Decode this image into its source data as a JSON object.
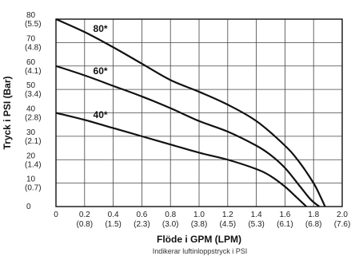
{
  "chart_data": {
    "type": "line",
    "xlabel": "Flöde i GPM (LPM)",
    "ylabel": "Tryck i PSI (Bar)",
    "note": "Indikerar luftinloppstryck i PSI",
    "xlim": [
      0,
      2.0
    ],
    "ylim": [
      0,
      80
    ],
    "grid": true,
    "x_ticks": [
      {
        "value": 0,
        "primary": "0",
        "secondary": ""
      },
      {
        "value": 0.2,
        "primary": "0.2",
        "secondary": "(0.8)"
      },
      {
        "value": 0.4,
        "primary": "0.4",
        "secondary": "(1.5)"
      },
      {
        "value": 0.6,
        "primary": "0.6",
        "secondary": "(2.3)"
      },
      {
        "value": 0.8,
        "primary": "0.8",
        "secondary": "(3.0)"
      },
      {
        "value": 1.0,
        "primary": "1.0",
        "secondary": "(3.8)"
      },
      {
        "value": 1.2,
        "primary": "1.2",
        "secondary": "(4.5)"
      },
      {
        "value": 1.4,
        "primary": "1.4",
        "secondary": "(5.3)"
      },
      {
        "value": 1.6,
        "primary": "1.6",
        "secondary": "(6.1)"
      },
      {
        "value": 1.8,
        "primary": "1.8",
        "secondary": "(6.8)"
      },
      {
        "value": 2.0,
        "primary": "2.0",
        "secondary": "(7.6)"
      }
    ],
    "y_ticks": [
      {
        "value": 80,
        "primary": "80",
        "secondary": "(5.5)"
      },
      {
        "value": 70,
        "primary": "70",
        "secondary": "(4.8)"
      },
      {
        "value": 60,
        "primary": "60",
        "secondary": "(4.1)"
      },
      {
        "value": 50,
        "primary": "50",
        "secondary": "(3.4)"
      },
      {
        "value": 40,
        "primary": "40",
        "secondary": "(2.8)"
      },
      {
        "value": 30,
        "primary": "30",
        "secondary": "(2.1)"
      },
      {
        "value": 20,
        "primary": "20",
        "secondary": "(1.4)"
      },
      {
        "value": 10,
        "primary": "10",
        "secondary": "(0.7)"
      },
      {
        "value": 0,
        "primary": "0",
        "secondary": ""
      }
    ],
    "series": [
      {
        "name": "80*",
        "x": [
          0,
          0.2,
          0.4,
          0.6,
          0.8,
          1.0,
          1.2,
          1.4,
          1.6,
          1.7,
          1.8,
          1.85,
          1.88
        ],
        "y": [
          80,
          74.5,
          68,
          61,
          54,
          49,
          43.5,
          36.5,
          26,
          19,
          10,
          4,
          0
        ]
      },
      {
        "name": "60*",
        "x": [
          0,
          0.2,
          0.4,
          0.6,
          0.8,
          1.0,
          1.2,
          1.4,
          1.5,
          1.6,
          1.7,
          1.78,
          1.84
        ],
        "y": [
          60,
          56,
          51.5,
          47,
          42,
          36.5,
          32,
          26,
          22,
          16.5,
          9,
          3,
          0
        ]
      },
      {
        "name": "40*",
        "x": [
          0,
          0.2,
          0.4,
          0.6,
          0.8,
          1.0,
          1.2,
          1.4,
          1.5,
          1.6,
          1.68,
          1.75
        ],
        "y": [
          40,
          37,
          33.5,
          30,
          26.5,
          23,
          20,
          16,
          13,
          8.5,
          4,
          0
        ]
      }
    ]
  }
}
